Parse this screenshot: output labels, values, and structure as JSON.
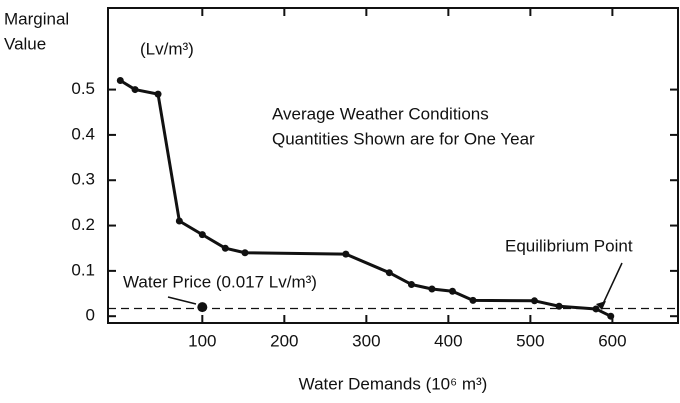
{
  "chart_data": {
    "type": "line",
    "y_label": [
      "Marginal",
      "Value"
    ],
    "y_unit": "(Lv/m³)",
    "x_label": "Water Demands (10⁶ m³)",
    "annotations": [
      "Average Weather Conditions",
      "Quantities Shown are for One Year"
    ],
    "equilibrium_label": "Equilibrium Point",
    "price_label": "Water Price (0.017 Lv/m³)",
    "price_line": 0.017,
    "price_point": {
      "x": 100,
      "y": 0.02
    },
    "x": [
      0,
      18,
      46,
      72,
      100,
      128,
      152,
      275,
      328,
      355,
      380,
      405,
      430,
      505,
      535,
      580,
      598
    ],
    "series": [
      {
        "color": "#111111",
        "values": [
          0.52,
          0.5,
          0.49,
          0.21,
          0.18,
          0.15,
          0.14,
          0.137,
          0.096,
          0.07,
          0.06,
          0.055,
          0.035,
          0.034,
          0.022,
          0.016,
          0.0
        ]
      }
    ],
    "xlim": [
      -15,
      680
    ],
    "xticks": [
      100,
      200,
      300,
      400,
      500,
      600
    ],
    "ylim": [
      -0.015,
      0.68
    ],
    "yticks": [
      0,
      0.1,
      0.2,
      0.3,
      0.4,
      0.5
    ]
  }
}
